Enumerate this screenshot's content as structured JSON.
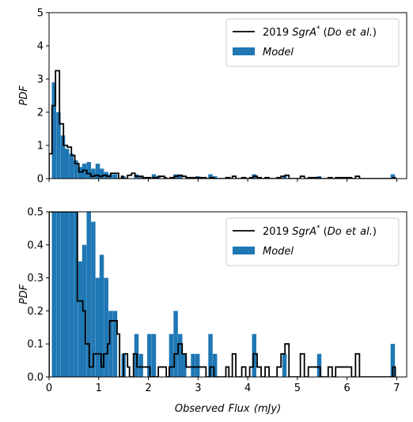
{
  "chart_data": [
    {
      "type": "bar",
      "ylabel": "PDF",
      "xlabel": "",
      "xlim": [
        0,
        7.2
      ],
      "ylim": [
        0,
        5
      ],
      "yticks": [
        "0",
        "1",
        "2",
        "3",
        "4",
        "5"
      ],
      "legend": {
        "placement": "top-right",
        "line_label": "2019 SgrA* (Do et al.)",
        "bar_label": "Model"
      },
      "bin_width": 0.0875,
      "bar_color": "#1f77b4",
      "line_color": "#000000",
      "model_bins": [
        {
          "x": 0.1,
          "v": 2.9
        },
        {
          "x": 0.19,
          "v": 2.0
        },
        {
          "x": 0.28,
          "v": 1.3
        },
        {
          "x": 0.36,
          "v": 0.9
        },
        {
          "x": 0.45,
          "v": 0.75
        },
        {
          "x": 0.54,
          "v": 0.55
        },
        {
          "x": 0.63,
          "v": 0.35
        },
        {
          "x": 0.71,
          "v": 0.45
        },
        {
          "x": 0.8,
          "v": 0.5
        },
        {
          "x": 0.89,
          "v": 0.3
        },
        {
          "x": 0.98,
          "v": 0.45
        },
        {
          "x": 1.06,
          "v": 0.3
        },
        {
          "x": 1.15,
          "v": 0.2
        },
        {
          "x": 1.24,
          "v": 0.13
        },
        {
          "x": 1.33,
          "v": 0.13
        },
        {
          "x": 1.5,
          "v": 0.07
        },
        {
          "x": 1.76,
          "v": 0.13
        },
        {
          "x": 1.85,
          "v": 0.07
        },
        {
          "x": 2.11,
          "v": 0.13
        },
        {
          "x": 2.2,
          "v": 0.07
        },
        {
          "x": 2.55,
          "v": 0.13
        },
        {
          "x": 2.64,
          "v": 0.1
        },
        {
          "x": 2.99,
          "v": 0.07
        },
        {
          "x": 3.25,
          "v": 0.13
        },
        {
          "x": 3.34,
          "v": 0.07
        },
        {
          "x": 4.13,
          "v": 0.13
        },
        {
          "x": 4.74,
          "v": 0.07
        },
        {
          "x": 5.44,
          "v": 0.07
        },
        {
          "x": 6.92,
          "v": 0.13
        }
      ],
      "observed_steps": [
        [
          0.0,
          0.75
        ],
        [
          0.06,
          2.2
        ],
        [
          0.13,
          3.25
        ],
        [
          0.21,
          1.65
        ],
        [
          0.29,
          1.0
        ],
        [
          0.37,
          0.95
        ],
        [
          0.45,
          0.7
        ],
        [
          0.52,
          0.45
        ],
        [
          0.6,
          0.2
        ],
        [
          0.68,
          0.25
        ],
        [
          0.76,
          0.15
        ],
        [
          0.84,
          0.07
        ],
        [
          0.92,
          0.1
        ],
        [
          1.0,
          0.07
        ],
        [
          1.08,
          0.1
        ],
        [
          1.16,
          0.07
        ],
        [
          1.24,
          0.16
        ],
        [
          1.37,
          0.16
        ],
        [
          1.4,
          0.0
        ],
        [
          1.46,
          0.07
        ],
        [
          1.49,
          0.0
        ],
        [
          1.58,
          0.1
        ],
        [
          1.66,
          0.16
        ],
        [
          1.73,
          0.07
        ],
        [
          1.81,
          0.07
        ],
        [
          1.89,
          0.03
        ],
        [
          2.04,
          0.0
        ],
        [
          2.08,
          0.03
        ],
        [
          2.2,
          0.07
        ],
        [
          2.32,
          0.03
        ],
        [
          2.36,
          0.0
        ],
        [
          2.44,
          0.03
        ],
        [
          2.52,
          0.07
        ],
        [
          2.6,
          0.1
        ],
        [
          2.68,
          0.07
        ],
        [
          2.76,
          0.03
        ],
        [
          2.84,
          0.03
        ],
        [
          3.16,
          0.0
        ],
        [
          3.24,
          0.03
        ],
        [
          3.32,
          0.0
        ],
        [
          3.56,
          0.03
        ],
        [
          3.64,
          0.0
        ],
        [
          3.69,
          0.07
        ],
        [
          3.76,
          0.0
        ],
        [
          3.88,
          0.03
        ],
        [
          3.96,
          0.0
        ],
        [
          4.04,
          0.03
        ],
        [
          4.11,
          0.07
        ],
        [
          4.19,
          0.03
        ],
        [
          4.27,
          0.0
        ],
        [
          4.35,
          0.03
        ],
        [
          4.43,
          0.0
        ],
        [
          4.59,
          0.03
        ],
        [
          4.67,
          0.07
        ],
        [
          4.75,
          0.1
        ],
        [
          4.83,
          0.0
        ],
        [
          5.06,
          0.07
        ],
        [
          5.14,
          0.0
        ],
        [
          5.22,
          0.03
        ],
        [
          5.38,
          0.03
        ],
        [
          5.46,
          0.0
        ],
        [
          5.62,
          0.03
        ],
        [
          5.7,
          0.0
        ],
        [
          5.77,
          0.03
        ],
        [
          5.93,
          0.03
        ],
        [
          6.09,
          0.0
        ],
        [
          6.17,
          0.07
        ],
        [
          6.25,
          0.0
        ],
        [
          6.92,
          0.03
        ],
        [
          6.97,
          0.0
        ]
      ]
    },
    {
      "type": "bar",
      "ylabel": "PDF",
      "xlabel": "Observed Flux (mJy)",
      "xlim": [
        0,
        7.2
      ],
      "ylim": [
        0,
        0.5
      ],
      "xticks": [
        "0",
        "1",
        "2",
        "3",
        "4",
        "5",
        "6",
        "7"
      ],
      "yticks": [
        "0.0",
        "0.1",
        "0.2",
        "0.3",
        "0.4",
        "0.5"
      ],
      "legend": {
        "placement": "top-right",
        "line_label": "2019 SgrA* (Do et al.)",
        "bar_label": "Model"
      },
      "bin_width": 0.0875,
      "bar_color": "#1f77b4",
      "line_color": "#000000",
      "model_bins": [
        {
          "x": 0.1,
          "v": 2.9
        },
        {
          "x": 0.19,
          "v": 2.0
        },
        {
          "x": 0.28,
          "v": 1.3
        },
        {
          "x": 0.36,
          "v": 0.9
        },
        {
          "x": 0.45,
          "v": 0.75
        },
        {
          "x": 0.54,
          "v": 0.55
        },
        {
          "x": 0.63,
          "v": 0.35
        },
        {
          "x": 0.71,
          "v": 0.4
        },
        {
          "x": 0.8,
          "v": 0.5
        },
        {
          "x": 0.89,
          "v": 0.47
        },
        {
          "x": 0.98,
          "v": 0.3
        },
        {
          "x": 1.06,
          "v": 0.37
        },
        {
          "x": 1.15,
          "v": 0.3
        },
        {
          "x": 1.24,
          "v": 0.2
        },
        {
          "x": 1.33,
          "v": 0.2
        },
        {
          "x": 1.5,
          "v": 0.07
        },
        {
          "x": 1.76,
          "v": 0.13
        },
        {
          "x": 1.85,
          "v": 0.07
        },
        {
          "x": 2.02,
          "v": 0.13
        },
        {
          "x": 2.11,
          "v": 0.13
        },
        {
          "x": 2.46,
          "v": 0.13
        },
        {
          "x": 2.55,
          "v": 0.2
        },
        {
          "x": 2.64,
          "v": 0.13
        },
        {
          "x": 2.72,
          "v": 0.07
        },
        {
          "x": 2.9,
          "v": 0.07
        },
        {
          "x": 2.99,
          "v": 0.07
        },
        {
          "x": 3.25,
          "v": 0.13
        },
        {
          "x": 3.34,
          "v": 0.07
        },
        {
          "x": 4.13,
          "v": 0.13
        },
        {
          "x": 4.74,
          "v": 0.07
        },
        {
          "x": 5.44,
          "v": 0.07
        },
        {
          "x": 6.92,
          "v": 0.1
        }
      ],
      "observed_steps": [
        [
          0.0,
          0.5
        ],
        [
          0.52,
          0.5
        ],
        [
          0.57,
          0.23
        ],
        [
          0.68,
          0.2
        ],
        [
          0.73,
          0.1
        ],
        [
          0.81,
          0.03
        ],
        [
          0.89,
          0.07
        ],
        [
          1.05,
          0.03
        ],
        [
          1.1,
          0.07
        ],
        [
          1.18,
          0.1
        ],
        [
          1.22,
          0.17
        ],
        [
          1.37,
          0.13
        ],
        [
          1.42,
          0.0
        ],
        [
          1.5,
          0.07
        ],
        [
          1.58,
          0.03
        ],
        [
          1.62,
          0.0
        ],
        [
          1.7,
          0.07
        ],
        [
          1.77,
          0.03
        ],
        [
          1.85,
          0.03
        ],
        [
          2.03,
          0.0
        ],
        [
          2.2,
          0.03
        ],
        [
          2.36,
          0.0
        ],
        [
          2.42,
          0.03
        ],
        [
          2.52,
          0.07
        ],
        [
          2.6,
          0.1
        ],
        [
          2.68,
          0.07
        ],
        [
          2.76,
          0.03
        ],
        [
          2.84,
          0.03
        ],
        [
          3.16,
          0.0
        ],
        [
          3.24,
          0.03
        ],
        [
          3.32,
          0.0
        ],
        [
          3.56,
          0.03
        ],
        [
          3.62,
          0.0
        ],
        [
          3.69,
          0.07
        ],
        [
          3.76,
          0.0
        ],
        [
          3.88,
          0.03
        ],
        [
          3.96,
          0.0
        ],
        [
          4.04,
          0.03
        ],
        [
          4.11,
          0.07
        ],
        [
          4.19,
          0.03
        ],
        [
          4.27,
          0.0
        ],
        [
          4.35,
          0.03
        ],
        [
          4.43,
          0.0
        ],
        [
          4.59,
          0.03
        ],
        [
          4.67,
          0.07
        ],
        [
          4.75,
          0.1
        ],
        [
          4.83,
          0.0
        ],
        [
          5.06,
          0.07
        ],
        [
          5.14,
          0.0
        ],
        [
          5.22,
          0.03
        ],
        [
          5.38,
          0.03
        ],
        [
          5.46,
          0.0
        ],
        [
          5.62,
          0.03
        ],
        [
          5.7,
          0.0
        ],
        [
          5.77,
          0.03
        ],
        [
          5.93,
          0.03
        ],
        [
          6.09,
          0.0
        ],
        [
          6.17,
          0.07
        ],
        [
          6.25,
          0.0
        ],
        [
          6.92,
          0.03
        ],
        [
          6.97,
          0.0
        ]
      ]
    }
  ]
}
